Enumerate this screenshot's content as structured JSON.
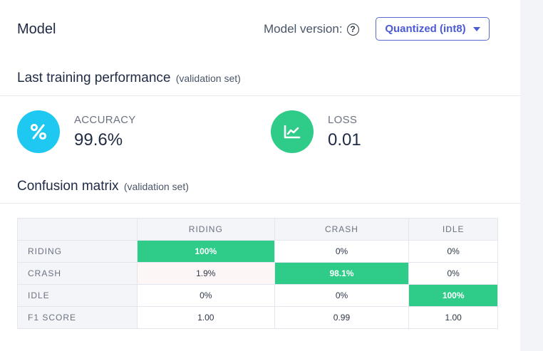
{
  "header": {
    "title": "Model",
    "version_label": "Model version:",
    "version_selected": "Quantized (int8)"
  },
  "performance": {
    "title": "Last training performance",
    "subtitle": "(validation set)",
    "accuracy": {
      "label": "ACCURACY",
      "value": "99.6%",
      "icon": "percent-icon",
      "color": "#1ec8f0"
    },
    "loss": {
      "label": "LOSS",
      "value": "0.01",
      "icon": "trend-chart-icon",
      "color": "#2ecc88"
    }
  },
  "confusion": {
    "title": "Confusion matrix",
    "subtitle": "(validation set)",
    "columns": [
      "RIDING",
      "CRASH",
      "IDLE"
    ],
    "rows": [
      {
        "label": "RIDING",
        "cells": [
          "100%",
          "0%",
          "0%"
        ]
      },
      {
        "label": "CRASH",
        "cells": [
          "1.9%",
          "98.1%",
          "0%"
        ]
      },
      {
        "label": "IDLE",
        "cells": [
          "0%",
          "0%",
          "100%"
        ]
      },
      {
        "label": "F1 SCORE",
        "cells": [
          "1.00",
          "0.99",
          "1.00"
        ]
      }
    ],
    "highlight_color": "#2ecc88"
  }
}
